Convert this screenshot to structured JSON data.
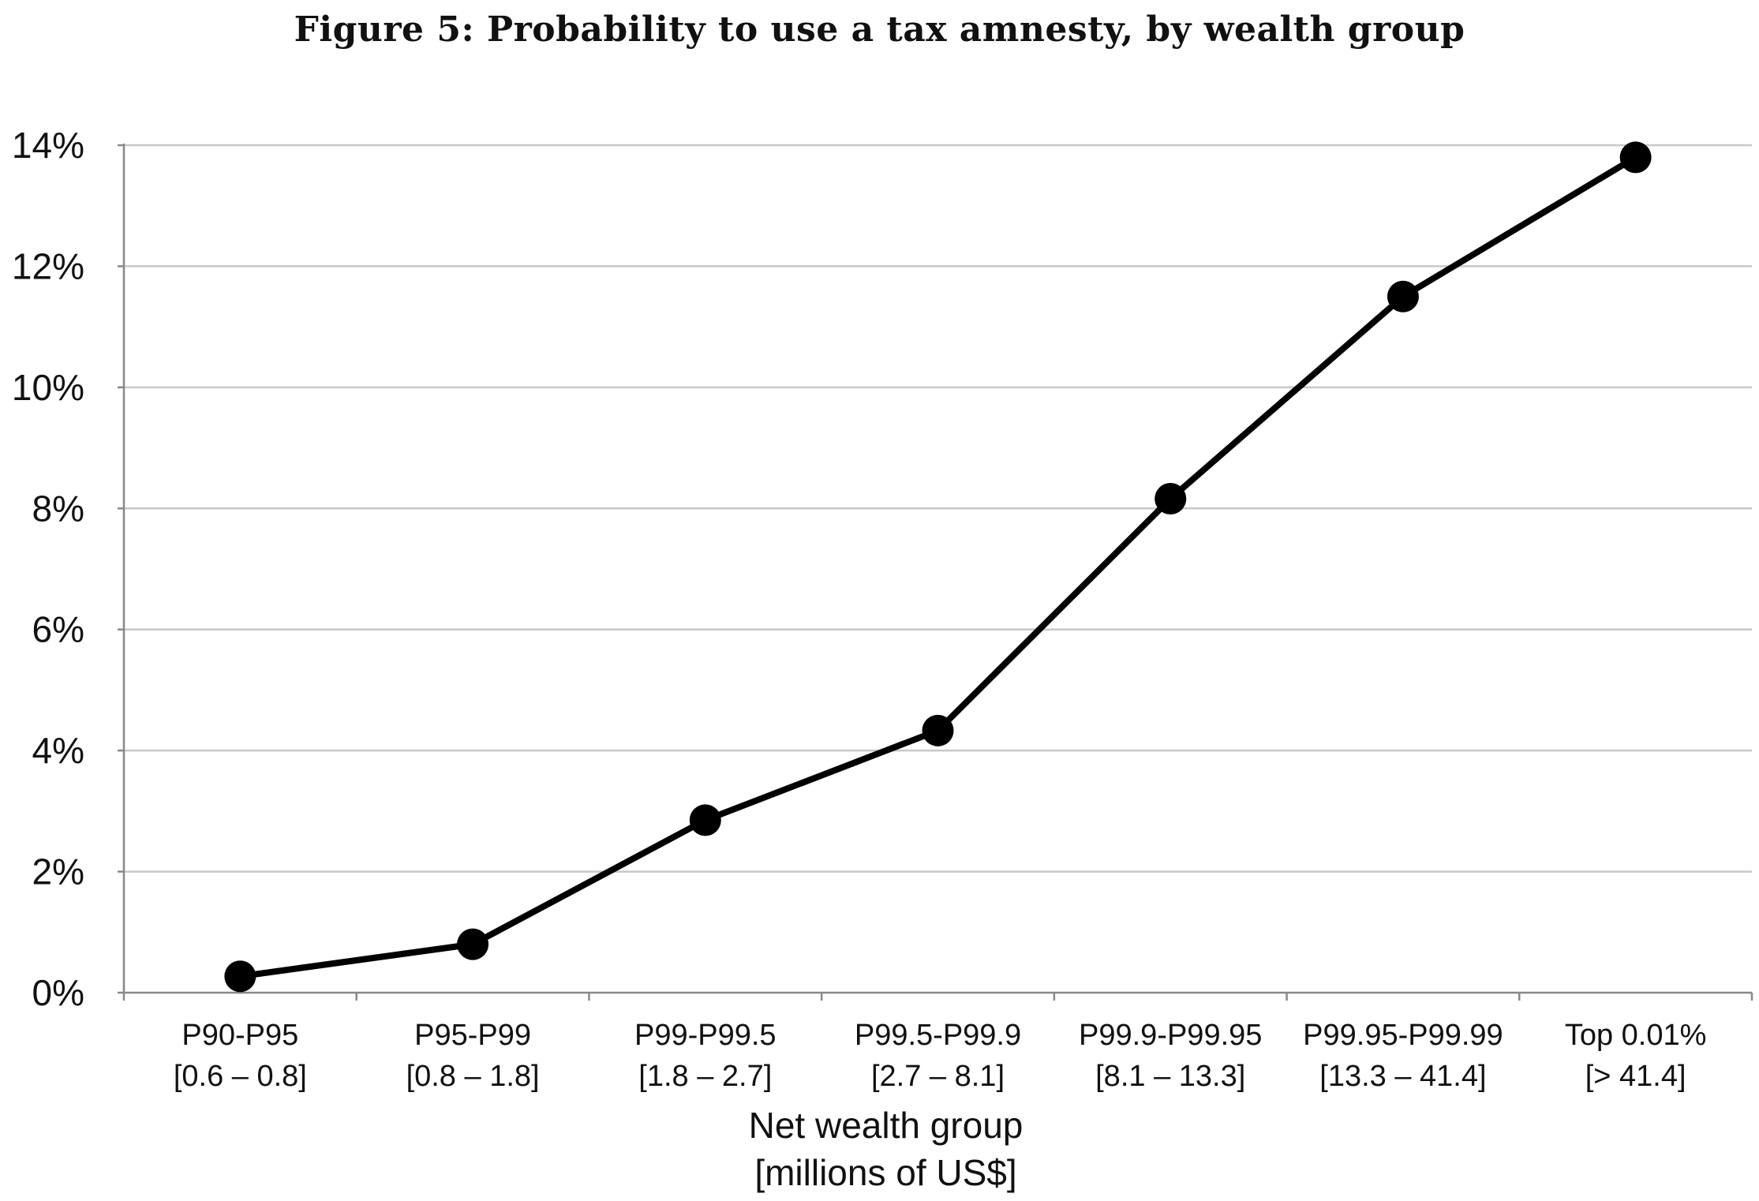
{
  "figure_title": "Figure 5: Probability to use a tax amnesty, by wealth group",
  "chart_data": {
    "type": "line",
    "title": "Figure 5: Probability to use a tax amnesty, by wealth group",
    "xlabel": [
      "Net wealth group",
      "[millions of US$]"
    ],
    "ylabel": "",
    "categories": [
      [
        "P90-P95",
        "[0.6 – 0.8]"
      ],
      [
        "P95-P99",
        "[0.8 – 1.8]"
      ],
      [
        "P99-P99.5",
        "[1.8 – 2.7]"
      ],
      [
        "P99.5-P99.9",
        "[2.7 – 8.1]"
      ],
      [
        "P99.9-P99.95",
        "[8.1 – 13.3]"
      ],
      [
        "P99.95-P99.99",
        "[13.3 – 41.4]"
      ],
      [
        "Top 0.01%",
        "[> 41.4]"
      ]
    ],
    "series": [
      {
        "values": [
          0.27,
          0.8,
          2.85,
          4.33,
          8.16,
          11.5,
          13.8
        ]
      }
    ],
    "ylim": [
      0,
      14
    ],
    "yticks": [
      0,
      2,
      4,
      6,
      8,
      10,
      12,
      14
    ],
    "ytick_labels": [
      "0%",
      "2%",
      "4%",
      "6%",
      "8%",
      "10%",
      "12%",
      "14%"
    ],
    "grid": "horizontal",
    "legend": "none",
    "colors": {
      "line": "#000000",
      "grid": "#c8c8c8",
      "axis": "#888888"
    }
  }
}
